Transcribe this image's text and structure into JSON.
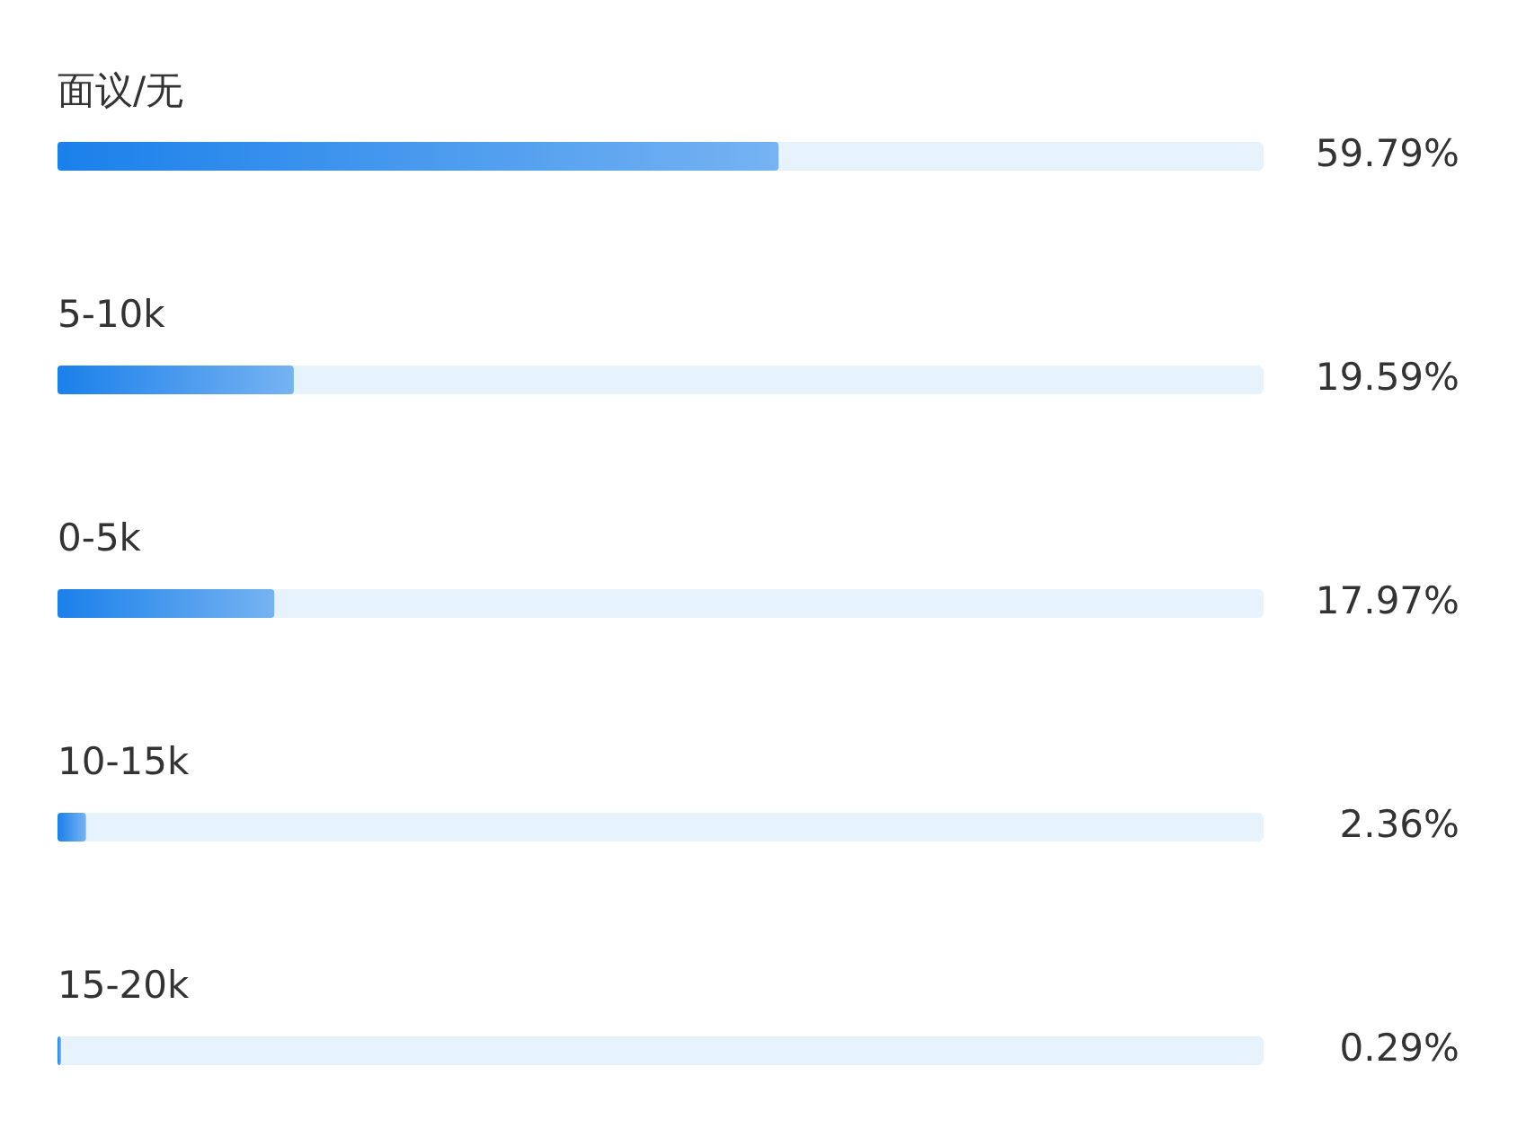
{
  "chart_data": {
    "type": "bar",
    "orientation": "horizontal",
    "categories": [
      "面议/无",
      "5-10k",
      "0-5k",
      "10-15k",
      "15-20k"
    ],
    "values": [
      59.79,
      19.59,
      17.97,
      2.36,
      0.29
    ],
    "value_labels": [
      "59.79%",
      "19.59%",
      "17.97%",
      "2.36%",
      "0.29%"
    ],
    "color": "#1a80ea",
    "xlim": [
      0,
      100
    ]
  }
}
